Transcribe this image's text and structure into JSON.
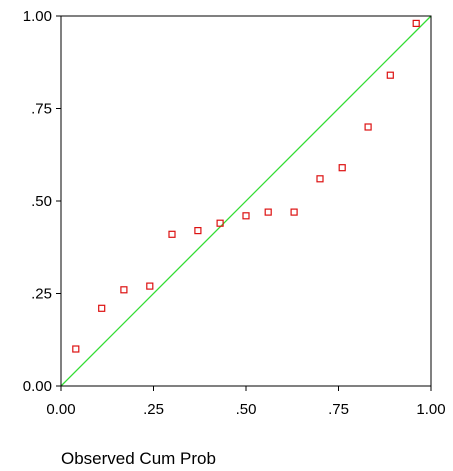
{
  "chart_data": {
    "type": "scatter",
    "title": "",
    "xlabel": "Observed Cum Prob",
    "ylabel": "",
    "xlim": [
      0,
      1
    ],
    "ylim": [
      0,
      1
    ],
    "xticks": [
      0,
      0.25,
      0.5,
      0.75,
      1.0
    ],
    "xtick_labels": [
      "0.00",
      ".25",
      ".50",
      ".75",
      "1.00"
    ],
    "yticks": [
      0,
      0.25,
      0.5,
      0.75,
      1.0
    ],
    "ytick_labels": [
      "0.00",
      ".25",
      ".50",
      ".75",
      "1.00"
    ],
    "grid": false,
    "reference_line": {
      "from": [
        0,
        0
      ],
      "to": [
        1,
        1
      ],
      "color": "#33dd33"
    },
    "marker_color": "#dd1111",
    "points": [
      {
        "x": 0.04,
        "y": 0.1
      },
      {
        "x": 0.11,
        "y": 0.21
      },
      {
        "x": 0.17,
        "y": 0.26
      },
      {
        "x": 0.24,
        "y": 0.27
      },
      {
        "x": 0.3,
        "y": 0.41
      },
      {
        "x": 0.37,
        "y": 0.42
      },
      {
        "x": 0.43,
        "y": 0.44
      },
      {
        "x": 0.5,
        "y": 0.46
      },
      {
        "x": 0.56,
        "y": 0.47
      },
      {
        "x": 0.63,
        "y": 0.47
      },
      {
        "x": 0.7,
        "y": 0.56
      },
      {
        "x": 0.76,
        "y": 0.59
      },
      {
        "x": 0.83,
        "y": 0.7
      },
      {
        "x": 0.89,
        "y": 0.84
      },
      {
        "x": 0.96,
        "y": 0.98
      }
    ]
  }
}
